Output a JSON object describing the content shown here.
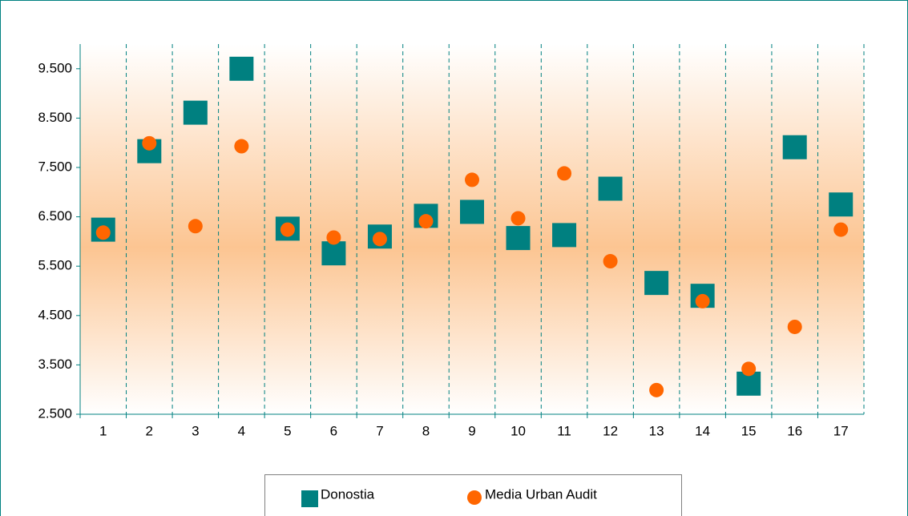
{
  "chart_data": {
    "type": "scatter",
    "categories": [
      "1",
      "2",
      "3",
      "4",
      "5",
      "6",
      "7",
      "8",
      "9",
      "10",
      "11",
      "12",
      "13",
      "14",
      "15",
      "16",
      "17"
    ],
    "series": [
      {
        "name": "Donostia",
        "color": "#008080",
        "marker": "square",
        "values": [
          6240,
          7830,
          8610,
          9500,
          6260,
          5760,
          6100,
          6520,
          6600,
          6070,
          6130,
          7070,
          5160,
          4900,
          3120,
          7910,
          6750
        ]
      },
      {
        "name": "Media Urban Audit",
        "color": "#ff6600",
        "marker": "circle",
        "values": [
          6180,
          7990,
          6310,
          7930,
          6240,
          6080,
          6050,
          6410,
          7250,
          6470,
          7380,
          5600,
          2990,
          4790,
          3420,
          4270,
          6240
        ]
      }
    ],
    "ylim": [
      2500,
      10000
    ],
    "yticks": [
      {
        "value": 2500,
        "label": "2.500"
      },
      {
        "value": 3500,
        "label": "3.500"
      },
      {
        "value": 4500,
        "label": "4.500"
      },
      {
        "value": 5500,
        "label": "5.500"
      },
      {
        "value": 6500,
        "label": "6.500"
      },
      {
        "value": 7500,
        "label": "7.500"
      },
      {
        "value": 8500,
        "label": "8.500"
      },
      {
        "value": 9500,
        "label": "9.500"
      }
    ],
    "grid": true,
    "legend": "bottom"
  }
}
